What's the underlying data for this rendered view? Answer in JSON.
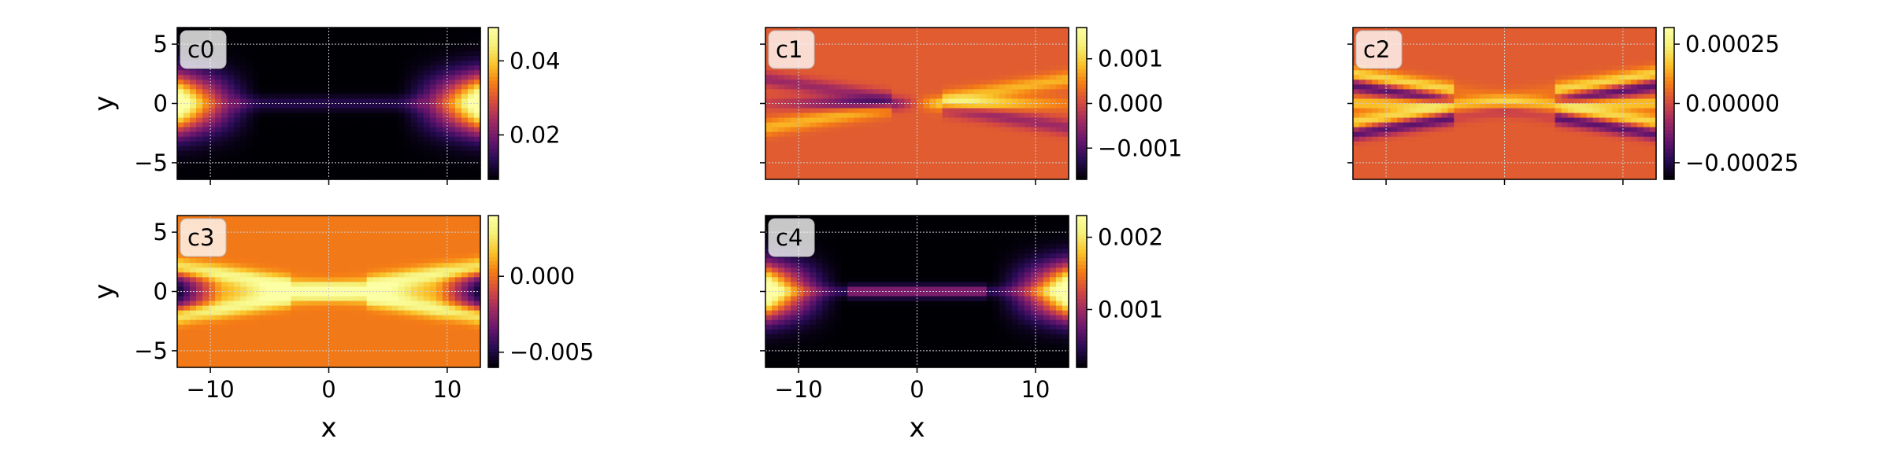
{
  "chart_data": [
    {
      "type": "heatmap",
      "title": "c0",
      "xlabel": "",
      "ylabel": "y",
      "xlim": [
        -12.8,
        12.8
      ],
      "ylim": [
        -6.4,
        6.4
      ],
      "xticks": [
        -10,
        0,
        10
      ],
      "xticklabels": [
        "",
        "",
        ""
      ],
      "yticks": [
        5,
        0,
        -5
      ],
      "yticklabels": [
        "5",
        "0",
        "−5"
      ],
      "colormap": "inferno",
      "grid": true,
      "colorbar": {
        "min": 0.008,
        "max": 0.049,
        "ticks": [
          0.04,
          0.02
        ],
        "ticklabels": [
          "0.04",
          "0.02"
        ]
      },
      "pattern": {
        "kind": "edge_blobs",
        "base": 0.0
      }
    },
    {
      "type": "heatmap",
      "title": "c1",
      "xlabel": "",
      "ylabel": "",
      "xlim": [
        -12.8,
        12.8
      ],
      "ylim": [
        -6.4,
        6.4
      ],
      "xticks": [
        -10,
        0,
        10
      ],
      "xticklabels": [
        "",
        "",
        ""
      ],
      "yticks": [
        5,
        0,
        -5
      ],
      "yticklabels": [
        "",
        "",
        ""
      ],
      "colormap": "inferno",
      "grid": true,
      "colorbar": {
        "min": -0.0017,
        "max": 0.0017,
        "ticks": [
          0.001,
          0.0,
          -0.001
        ],
        "ticklabels": [
          "0.001",
          "0.000",
          "−0.001"
        ]
      },
      "pattern": {
        "kind": "antisym_cross",
        "base": 0.55
      }
    },
    {
      "type": "heatmap",
      "title": "c2",
      "xlabel": "",
      "ylabel": "",
      "xlim": [
        -12.8,
        12.8
      ],
      "ylim": [
        -6.4,
        6.4
      ],
      "xticks": [
        -10,
        0,
        10
      ],
      "xticklabels": [
        "",
        "",
        ""
      ],
      "yticks": [
        5,
        0,
        -5
      ],
      "yticklabels": [
        "",
        "",
        ""
      ],
      "colormap": "inferno",
      "grid": true,
      "colorbar": {
        "min": -0.00032,
        "max": 0.00032,
        "ticks": [
          0.00025,
          0.0,
          -0.00025
        ],
        "ticklabels": [
          "0.00025",
          "0.00000",
          "−0.00025"
        ]
      },
      "pattern": {
        "kind": "sym_cross",
        "base": 0.55
      }
    },
    {
      "type": "heatmap",
      "title": "c3",
      "xlabel": "x",
      "ylabel": "y",
      "xlim": [
        -12.8,
        12.8
      ],
      "ylim": [
        -6.4,
        6.4
      ],
      "xticks": [
        -10,
        0,
        10
      ],
      "xticklabels": [
        "−10",
        "0",
        "10"
      ],
      "yticks": [
        5,
        0,
        -5
      ],
      "yticklabels": [
        "5",
        "0",
        "−5"
      ],
      "colormap": "inferno",
      "grid": true,
      "colorbar": {
        "min": -0.006,
        "max": 0.004,
        "ticks": [
          0.0,
          -0.005
        ],
        "ticklabels": [
          "0.000",
          "−0.005"
        ]
      },
      "pattern": {
        "kind": "bright_cross",
        "base": 0.62
      }
    },
    {
      "type": "heatmap",
      "title": "c4",
      "xlabel": "x",
      "ylabel": "",
      "xlim": [
        -12.8,
        12.8
      ],
      "ylim": [
        -6.4,
        6.4
      ],
      "xticks": [
        -10,
        0,
        10
      ],
      "xticklabels": [
        "−10",
        "0",
        "10"
      ],
      "yticks": [
        5,
        0,
        -5
      ],
      "yticklabels": [
        "",
        "",
        ""
      ],
      "colormap": "inferno",
      "grid": true,
      "colorbar": {
        "min": 0.0002,
        "max": 0.0023,
        "ticks": [
          0.002,
          0.001
        ],
        "ticklabels": [
          "0.002",
          "0.001"
        ]
      },
      "pattern": {
        "kind": "edge_blobs_line",
        "base": 0.0
      }
    }
  ]
}
